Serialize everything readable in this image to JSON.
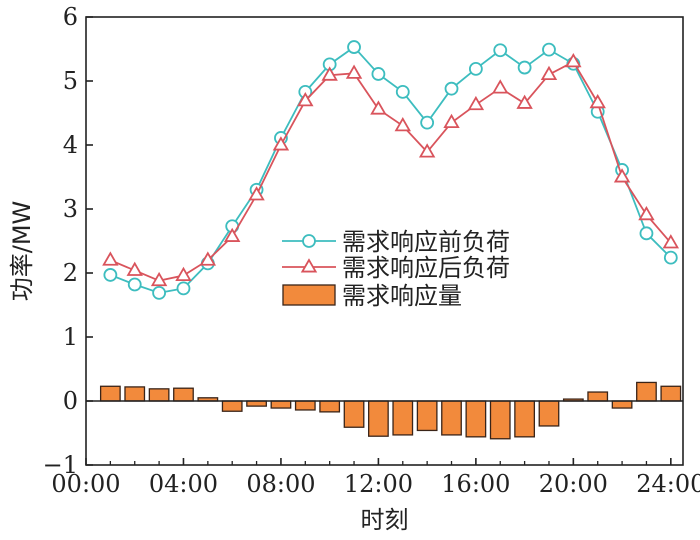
{
  "chart_data": {
    "type": "line",
    "xlabel": "时刻",
    "ylabel": "功率/MW",
    "xlim": [
      0,
      24.5
    ],
    "ylim": [
      -1,
      6
    ],
    "x_ticks": [
      0,
      4,
      8,
      12,
      16,
      20,
      24
    ],
    "x_tick_labels": [
      "00:00",
      "04:00",
      "08:00",
      "12:00",
      "16:00",
      "20:00",
      "24:00"
    ],
    "y_ticks": [
      -1,
      0,
      1,
      2,
      3,
      4,
      5,
      6
    ],
    "y_tick_labels": [
      "−1",
      "0",
      "1",
      "2",
      "3",
      "4",
      "5",
      "6"
    ],
    "grid": false,
    "legend_position": "center",
    "x": [
      1,
      2,
      3,
      4,
      5,
      6,
      7,
      8,
      9,
      10,
      11,
      12,
      13,
      14,
      15,
      16,
      17,
      18,
      19,
      20,
      21,
      22,
      23,
      24
    ],
    "series": [
      {
        "name": "需求响应前负荷",
        "type": "line",
        "marker": "circle",
        "color": "#3dbdbf",
        "values": [
          1.97,
          1.82,
          1.69,
          1.76,
          2.15,
          2.73,
          3.3,
          4.11,
          4.83,
          5.26,
          5.53,
          5.11,
          4.83,
          4.35,
          4.88,
          5.19,
          5.48,
          5.21,
          5.49,
          5.27,
          4.52,
          3.61,
          2.62,
          2.24
        ]
      },
      {
        "name": "需求响应后负荷",
        "type": "line",
        "marker": "triangle",
        "color": "#d9545c",
        "values": [
          2.2,
          2.04,
          1.88,
          1.96,
          2.2,
          2.57,
          3.22,
          4.0,
          4.69,
          5.09,
          5.12,
          4.56,
          4.3,
          3.89,
          4.35,
          4.63,
          4.89,
          4.65,
          5.1,
          5.3,
          4.66,
          3.5,
          2.91,
          2.47
        ]
      },
      {
        "name": "需求响应量",
        "type": "bar",
        "color": "#f28a3c",
        "edge_color": "#3a2418",
        "values": [
          0.23,
          0.22,
          0.19,
          0.2,
          0.05,
          -0.16,
          -0.08,
          -0.11,
          -0.14,
          -0.17,
          -0.41,
          -0.55,
          -0.53,
          -0.46,
          -0.53,
          -0.56,
          -0.59,
          -0.56,
          -0.39,
          0.03,
          0.14,
          -0.11,
          0.29,
          0.23
        ]
      }
    ]
  }
}
